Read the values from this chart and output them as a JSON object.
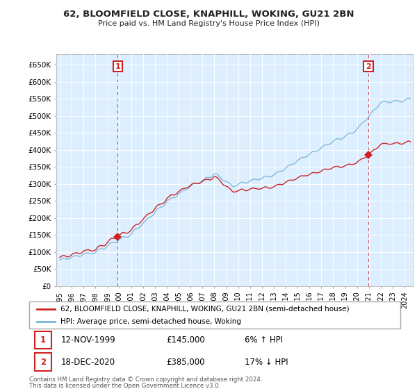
{
  "title": "62, BLOOMFIELD CLOSE, KNAPHILL, WOKING, GU21 2BN",
  "subtitle": "Price paid vs. HM Land Registry's House Price Index (HPI)",
  "ylabel_ticks": [
    "£0",
    "£50K",
    "£100K",
    "£150K",
    "£200K",
    "£250K",
    "£300K",
    "£350K",
    "£400K",
    "£450K",
    "£500K",
    "£550K",
    "£600K",
    "£650K"
  ],
  "ytick_values": [
    0,
    50000,
    100000,
    150000,
    200000,
    250000,
    300000,
    350000,
    400000,
    450000,
    500000,
    550000,
    600000,
    650000
  ],
  "ylim": [
    0,
    680000
  ],
  "hpi_color": "#7ab4d8",
  "price_color": "#cc2222",
  "marker_color": "#cc2222",
  "sale1_year": 1999.87,
  "sale1_price": 145000,
  "sale2_year": 2020.96,
  "sale2_price": 385000,
  "legend_price": "62, BLOOMFIELD CLOSE, KNAPHILL, WOKING, GU21 2BN (semi-detached house)",
  "legend_hpi": "HPI: Average price, semi-detached house, Woking",
  "table_row1": [
    "1",
    "12-NOV-1999",
    "£145,000",
    "6% ↑ HPI"
  ],
  "table_row2": [
    "2",
    "18-DEC-2020",
    "£385,000",
    "17% ↓ HPI"
  ],
  "footnote1": "Contains HM Land Registry data © Crown copyright and database right 2024.",
  "footnote2": "This data is licensed under the Open Government Licence v3.0.",
  "background_color": "#ffffff",
  "plot_bg_color": "#ddeeff",
  "grid_color": "#ffffff"
}
